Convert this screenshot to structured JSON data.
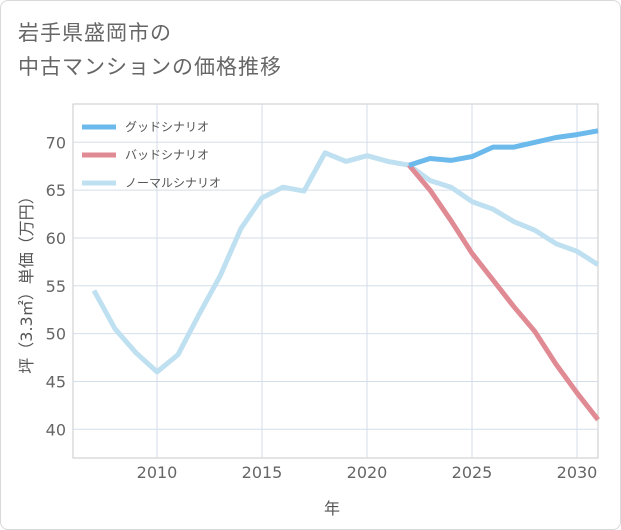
{
  "title_line1": "岩手県盛岡市の",
  "title_line2": "中古マンションの価格推移",
  "chart_data": {
    "type": "line",
    "xlabel": "年",
    "ylabel": "坪（3.3㎡）単価（万円）",
    "xlim": [
      2006,
      2031
    ],
    "ylim": [
      37,
      74
    ],
    "xticks": [
      2010,
      2015,
      2020,
      2025,
      2030
    ],
    "yticks": [
      40,
      45,
      50,
      55,
      60,
      65,
      70
    ],
    "grid": true,
    "legend_position": "top-left",
    "series": [
      {
        "name": "グッドシナリオ",
        "color": "#6cb9ec",
        "x": [
          2022,
          2023,
          2024,
          2025,
          2026,
          2027,
          2028,
          2029,
          2030,
          2031
        ],
        "y": [
          67.6,
          68.3,
          68.1,
          68.5,
          69.5,
          69.5,
          70.0,
          70.5,
          70.8,
          71.2
        ]
      },
      {
        "name": "バッドシナリオ",
        "color": "#e08a94",
        "x": [
          2022,
          2023,
          2024,
          2025,
          2026,
          2027,
          2028,
          2029,
          2030,
          2031
        ],
        "y": [
          67.6,
          65.0,
          61.8,
          58.4,
          55.6,
          52.8,
          50.2,
          46.8,
          43.8,
          41.0
        ]
      },
      {
        "name": "ノーマルシナリオ",
        "color": "#bfe0f0",
        "x": [
          2007,
          2008,
          2009,
          2010,
          2011,
          2012,
          2013,
          2014,
          2015,
          2016,
          2017,
          2018,
          2019,
          2020,
          2021,
          2022,
          2023,
          2024,
          2025,
          2026,
          2027,
          2028,
          2029,
          2030,
          2031
        ],
        "y": [
          54.5,
          50.5,
          48.0,
          46.0,
          47.8,
          52.0,
          56.0,
          61.0,
          64.2,
          65.3,
          64.9,
          68.9,
          68.0,
          68.6,
          68.0,
          67.6,
          66.0,
          65.3,
          63.8,
          63.0,
          61.7,
          60.8,
          59.4,
          58.6,
          57.2
        ]
      }
    ]
  }
}
